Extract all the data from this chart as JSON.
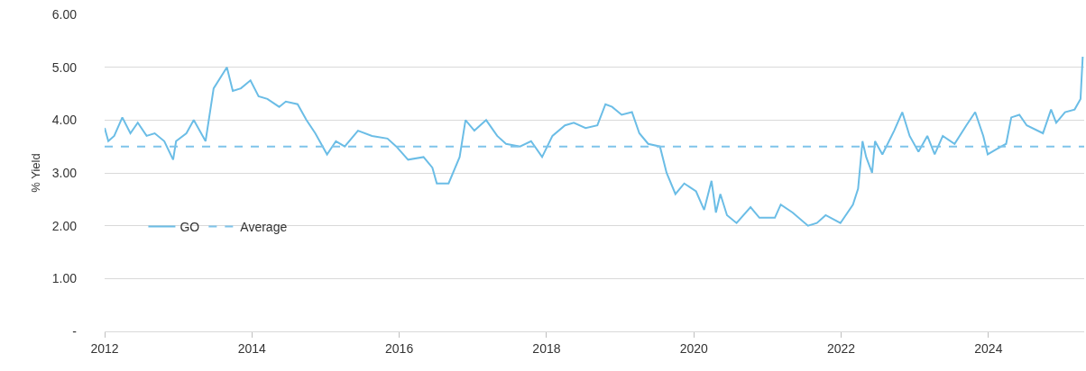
{
  "chart_data": {
    "type": "line",
    "ylabel": "% Yield",
    "x": [
      2012.0,
      2012.05,
      2012.13,
      2012.24,
      2012.35,
      2012.45,
      2012.57,
      2012.68,
      2012.81,
      2012.93,
      2012.97,
      2013.11,
      2013.21,
      2013.37,
      2013.48,
      2013.66,
      2013.74,
      2013.85,
      2013.98,
      2014.09,
      2014.21,
      2014.37,
      2014.46,
      2014.62,
      2014.74,
      2014.86,
      2015.02,
      2015.14,
      2015.26,
      2015.44,
      2015.63,
      2015.84,
      2015.96,
      2016.12,
      2016.33,
      2016.45,
      2016.51,
      2016.67,
      2016.82,
      2016.9,
      2017.02,
      2017.18,
      2017.33,
      2017.45,
      2017.64,
      2017.79,
      2017.94,
      2018.08,
      2018.25,
      2018.37,
      2018.53,
      2018.69,
      2018.8,
      2018.89,
      2019.02,
      2019.16,
      2019.26,
      2019.38,
      2019.54,
      2019.63,
      2019.75,
      2019.87,
      2020.03,
      2020.14,
      2020.24,
      2020.3,
      2020.36,
      2020.45,
      2020.58,
      2020.77,
      2020.89,
      2021.1,
      2021.18,
      2021.34,
      2021.55,
      2021.67,
      2021.79,
      2021.99,
      2022.16,
      2022.23,
      2022.29,
      2022.34,
      2022.42,
      2022.46,
      2022.56,
      2022.72,
      2022.83,
      2022.93,
      2023.05,
      2023.17,
      2023.27,
      2023.38,
      2023.54,
      2023.7,
      2023.82,
      2023.93,
      2023.99,
      2024.11,
      2024.24,
      2024.31,
      2024.42,
      2024.52,
      2024.74,
      2024.85,
      2024.92,
      2025.04,
      2025.17,
      2025.25,
      2025.28
    ],
    "series": [
      {
        "name": "GO",
        "color": "#6bbde6",
        "values": [
          3.85,
          3.6,
          3.7,
          4.05,
          3.75,
          3.95,
          3.7,
          3.75,
          3.6,
          3.25,
          3.6,
          3.75,
          4.0,
          3.6,
          4.6,
          5.0,
          4.55,
          4.6,
          4.75,
          4.45,
          4.4,
          4.25,
          4.35,
          4.3,
          4.0,
          3.75,
          3.35,
          3.6,
          3.5,
          3.8,
          3.7,
          3.65,
          3.5,
          3.25,
          3.3,
          3.1,
          2.8,
          2.8,
          3.3,
          4.0,
          3.8,
          4.0,
          3.7,
          3.55,
          3.5,
          3.6,
          3.3,
          3.7,
          3.9,
          3.95,
          3.85,
          3.9,
          4.3,
          4.25,
          4.1,
          4.15,
          3.75,
          3.55,
          3.5,
          3.0,
          2.6,
          2.8,
          2.65,
          2.3,
          2.85,
          2.25,
          2.6,
          2.2,
          2.05,
          2.35,
          2.15,
          2.15,
          2.4,
          2.25,
          2.0,
          2.05,
          2.2,
          2.05,
          2.4,
          2.7,
          3.6,
          3.3,
          3.0,
          3.6,
          3.35,
          3.8,
          4.15,
          3.7,
          3.4,
          3.7,
          3.35,
          3.7,
          3.55,
          3.9,
          4.15,
          3.7,
          3.35,
          3.45,
          3.55,
          4.05,
          4.1,
          3.9,
          3.75,
          4.2,
          3.95,
          4.15,
          4.2,
          4.4,
          5.2
        ]
      }
    ],
    "ref_lines": [
      {
        "axis": "y",
        "value": 3.5,
        "label": "Average",
        "color": "#7fc4ea",
        "line_style": "dashed"
      }
    ],
    "xlim": [
      2012,
      2025.3
    ],
    "xticks": [
      2012,
      2014,
      2016,
      2018,
      2020,
      2022,
      2024
    ],
    "ylim": [
      0,
      6
    ],
    "yticks": [
      {
        "value": 0,
        "label": "-"
      },
      {
        "value": 1,
        "label": "1.00"
      },
      {
        "value": 2,
        "label": "2.00"
      },
      {
        "value": 3,
        "label": "3.00"
      },
      {
        "value": 4,
        "label": "4.00"
      },
      {
        "value": 5,
        "label": "5.00"
      },
      {
        "value": 6,
        "label": "6.00"
      }
    ],
    "grid": "y",
    "legend": "bottom left",
    "line_style": "solid",
    "marker": "none"
  }
}
